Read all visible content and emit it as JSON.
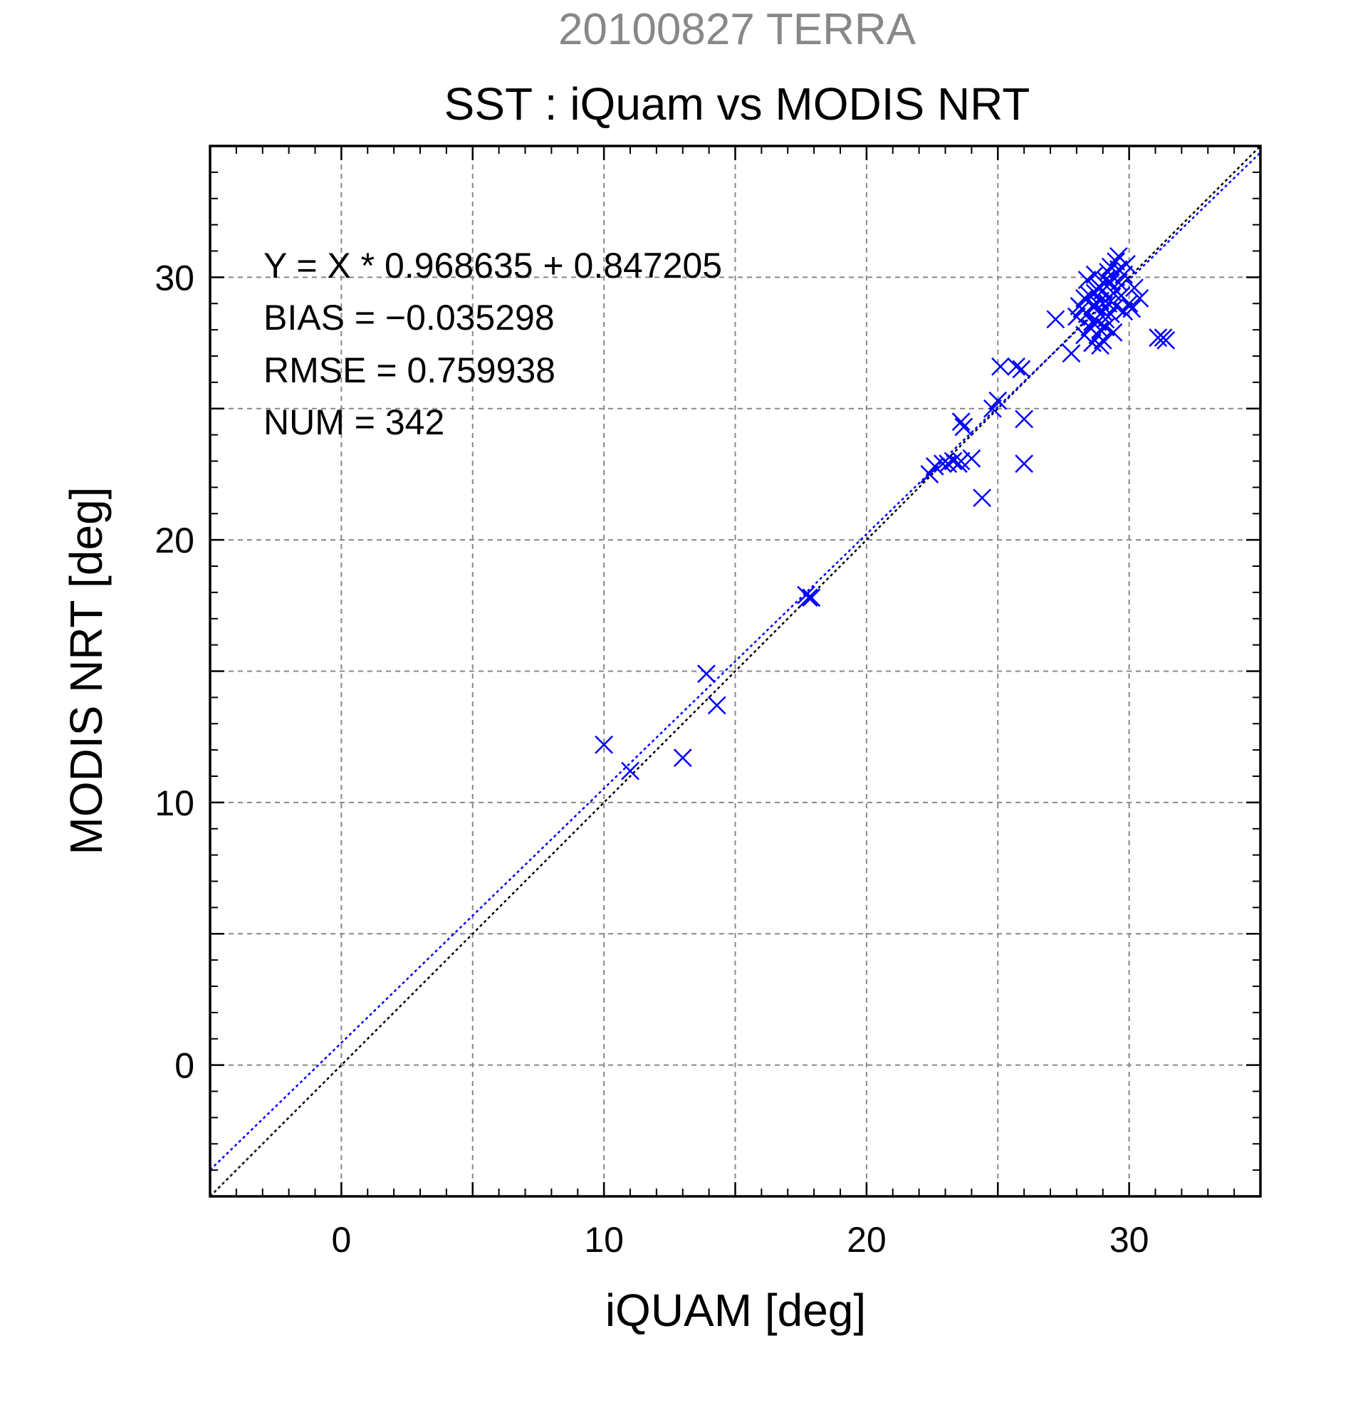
{
  "chart_data": {
    "type": "scatter",
    "title": "20100827 TERRA",
    "subtitle": "SST : iQuam vs MODIS NRT",
    "xlabel": "iQUAM [deg]",
    "ylabel": "MODIS NRT [deg]",
    "xlim": [
      -5,
      35
    ],
    "ylim": [
      -5,
      35
    ],
    "xticks": [
      0,
      10,
      20,
      30
    ],
    "yticks": [
      0,
      10,
      20,
      30
    ],
    "grid": true,
    "stats": [
      "Y = X * 0.968635 + 0.847205",
      "BIAS = −0.035298",
      "RMSE = 0.759938",
      "NUM = 342"
    ],
    "fit": {
      "slope": 0.968635,
      "intercept": 0.847205
    },
    "colors": {
      "points": "#0000ff",
      "fit_line": "#0000ff",
      "one_to_one": "#000000",
      "title": "#888888",
      "grid": "#888888"
    },
    "series": [
      {
        "marker": "x",
        "points": [
          [
            10.0,
            12.2
          ],
          [
            11.0,
            11.2
          ],
          [
            13.0,
            11.7
          ],
          [
            13.9,
            14.9
          ],
          [
            14.3,
            13.7
          ],
          [
            17.7,
            17.9
          ],
          [
            17.8,
            17.8
          ],
          [
            17.9,
            17.8
          ],
          [
            22.4,
            22.5
          ],
          [
            22.6,
            22.8
          ],
          [
            22.9,
            22.9
          ],
          [
            23.1,
            22.9
          ],
          [
            23.3,
            23.0
          ],
          [
            23.5,
            22.9
          ],
          [
            23.6,
            23.0
          ],
          [
            24.0,
            23.1
          ],
          [
            24.4,
            21.6
          ],
          [
            23.6,
            24.5
          ],
          [
            23.7,
            24.3
          ],
          [
            24.8,
            25.0
          ],
          [
            25.0,
            25.3
          ],
          [
            25.1,
            26.6
          ],
          [
            25.7,
            26.6
          ],
          [
            25.9,
            26.5
          ],
          [
            26.0,
            24.6
          ],
          [
            26.0,
            22.9
          ],
          [
            27.2,
            28.4
          ],
          [
            27.8,
            27.1
          ],
          [
            28.0,
            28.5
          ],
          [
            28.2,
            28.8
          ],
          [
            28.3,
            27.8
          ],
          [
            28.4,
            29.9
          ],
          [
            28.5,
            29.3
          ],
          [
            28.6,
            27.5
          ],
          [
            28.7,
            30.1
          ],
          [
            28.7,
            28.9
          ],
          [
            28.8,
            28.3
          ],
          [
            28.9,
            29.6
          ],
          [
            28.9,
            27.4
          ],
          [
            29.0,
            28.7
          ],
          [
            29.1,
            29.9
          ],
          [
            29.1,
            28.1
          ],
          [
            29.2,
            30.2
          ],
          [
            29.2,
            29.0
          ],
          [
            29.3,
            28.6
          ],
          [
            29.3,
            30.4
          ],
          [
            29.4,
            29.4
          ],
          [
            29.4,
            27.9
          ],
          [
            29.5,
            30.6
          ],
          [
            29.5,
            28.9
          ],
          [
            29.6,
            29.8
          ],
          [
            29.6,
            30.8
          ],
          [
            29.7,
            29.3
          ],
          [
            29.8,
            30.1
          ],
          [
            29.8,
            28.7
          ],
          [
            29.9,
            30.5
          ],
          [
            30.0,
            29.0
          ],
          [
            30.1,
            28.8
          ],
          [
            30.2,
            29.6
          ],
          [
            30.4,
            29.2
          ],
          [
            28.5,
            28.1
          ],
          [
            28.6,
            28.9
          ],
          [
            28.8,
            27.8
          ],
          [
            28.9,
            29.1
          ],
          [
            29.0,
            29.5
          ],
          [
            29.1,
            28.4
          ],
          [
            29.2,
            29.2
          ],
          [
            29.3,
            29.8
          ],
          [
            29.4,
            30.0
          ],
          [
            29.5,
            29.5
          ],
          [
            28.4,
            28.6
          ],
          [
            28.7,
            29.4
          ],
          [
            28.6,
            28.3
          ],
          [
            28.3,
            29.2
          ],
          [
            28.1,
            28.9
          ],
          [
            28.9,
            28.0
          ],
          [
            29.0,
            27.6
          ],
          [
            29.6,
            30.3
          ],
          [
            31.1,
            27.7
          ],
          [
            31.3,
            27.7
          ],
          [
            31.4,
            27.6
          ]
        ]
      }
    ]
  }
}
